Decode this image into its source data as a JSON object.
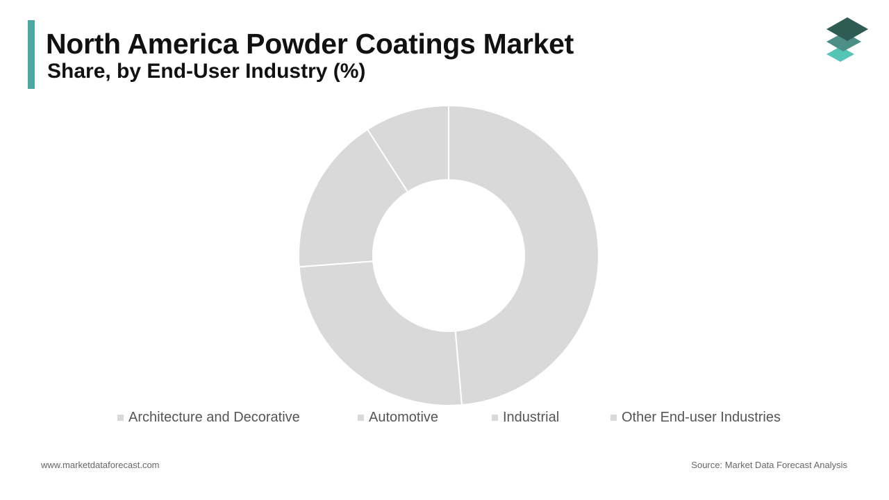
{
  "header": {
    "title": "North America Powder Coatings Market",
    "subtitle": "Share, by End-User Industry (%)"
  },
  "colors": {
    "accent": "#4aa9a4",
    "slice": "#d9d9d9",
    "legend_swatch": "#d9d9d9",
    "logo_top": "#2f5b55",
    "logo_middle": "#4c8f87",
    "logo_bottom": "#54c4b7"
  },
  "logo": {
    "icon": "stacked-layers-icon"
  },
  "chart_data": {
    "type": "pie",
    "variant": "donut",
    "title": "North America Powder Coatings Market",
    "subtitle": "Share, by End-User Industry (%)",
    "start_angle_deg": 0,
    "direction": "clockwise",
    "legend_position": "bottom",
    "categories": [
      "Architecture and Decorative",
      "Automotive",
      "Industrial",
      "Other End-user Industries"
    ],
    "values": [
      48.6,
      25.2,
      17.1,
      9.1
    ],
    "data_labels": false
  },
  "footer": {
    "website": "www.marketdataforecast.com",
    "source": "Source: Market Data Forecast Analysis"
  }
}
